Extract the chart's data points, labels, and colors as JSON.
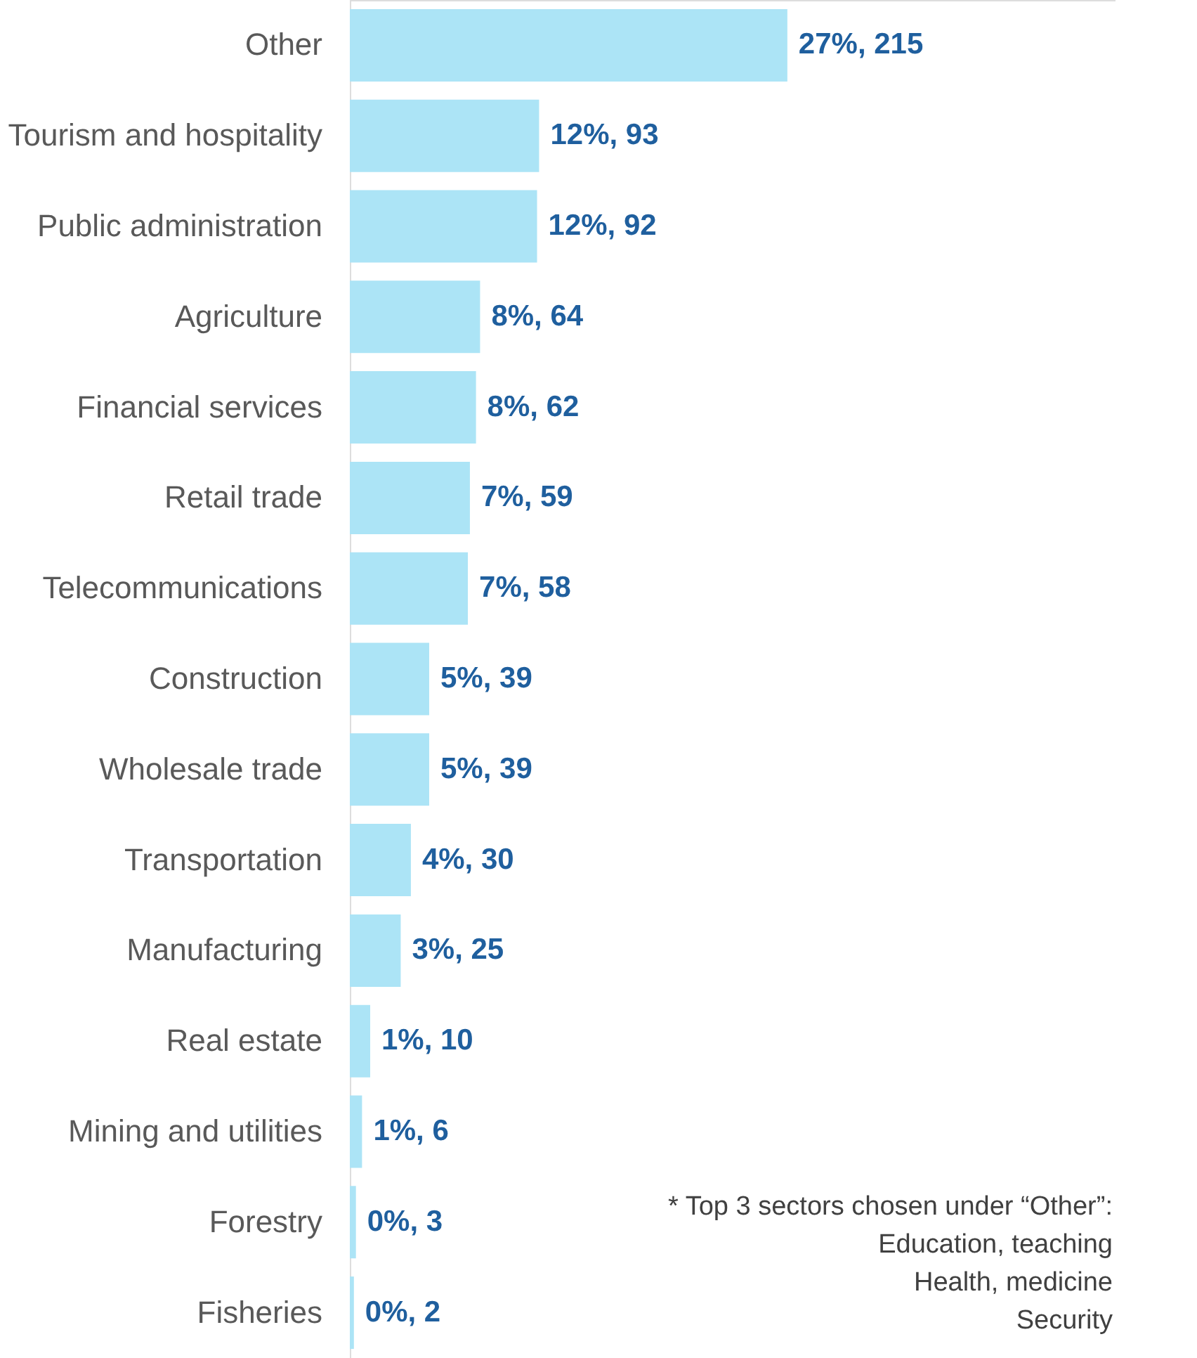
{
  "chart_data": {
    "type": "bar",
    "orientation": "horizontal",
    "categories": [
      "Other",
      "Tourism and hospitality",
      "Public administration",
      "Agriculture",
      "Financial services",
      "Retail trade",
      "Telecommunications",
      "Construction",
      "Wholesale trade",
      "Transportation",
      "Manufacturing",
      "Real estate",
      "Mining and utilities",
      "Forestry",
      "Fisheries"
    ],
    "values": [
      215,
      93,
      92,
      64,
      62,
      59,
      58,
      39,
      39,
      30,
      25,
      10,
      6,
      3,
      2
    ],
    "value_labels": [
      "27%, 215",
      "12%, 93",
      "12%, 92",
      "8%, 64",
      "8%, 62",
      "7%, 59",
      "7%, 58",
      "5%, 39",
      "5%, 39",
      "4%, 30",
      "3%, 25",
      "1%, 10",
      "1%, 6",
      "0%, 3",
      "0%, 2"
    ],
    "color": "#ace4f6",
    "annotations": [
      "* Top 3 sectors chosen under “Other”:",
      "Education, teaching",
      "Health, medicine",
      "Security"
    ],
    "grid": false
  }
}
